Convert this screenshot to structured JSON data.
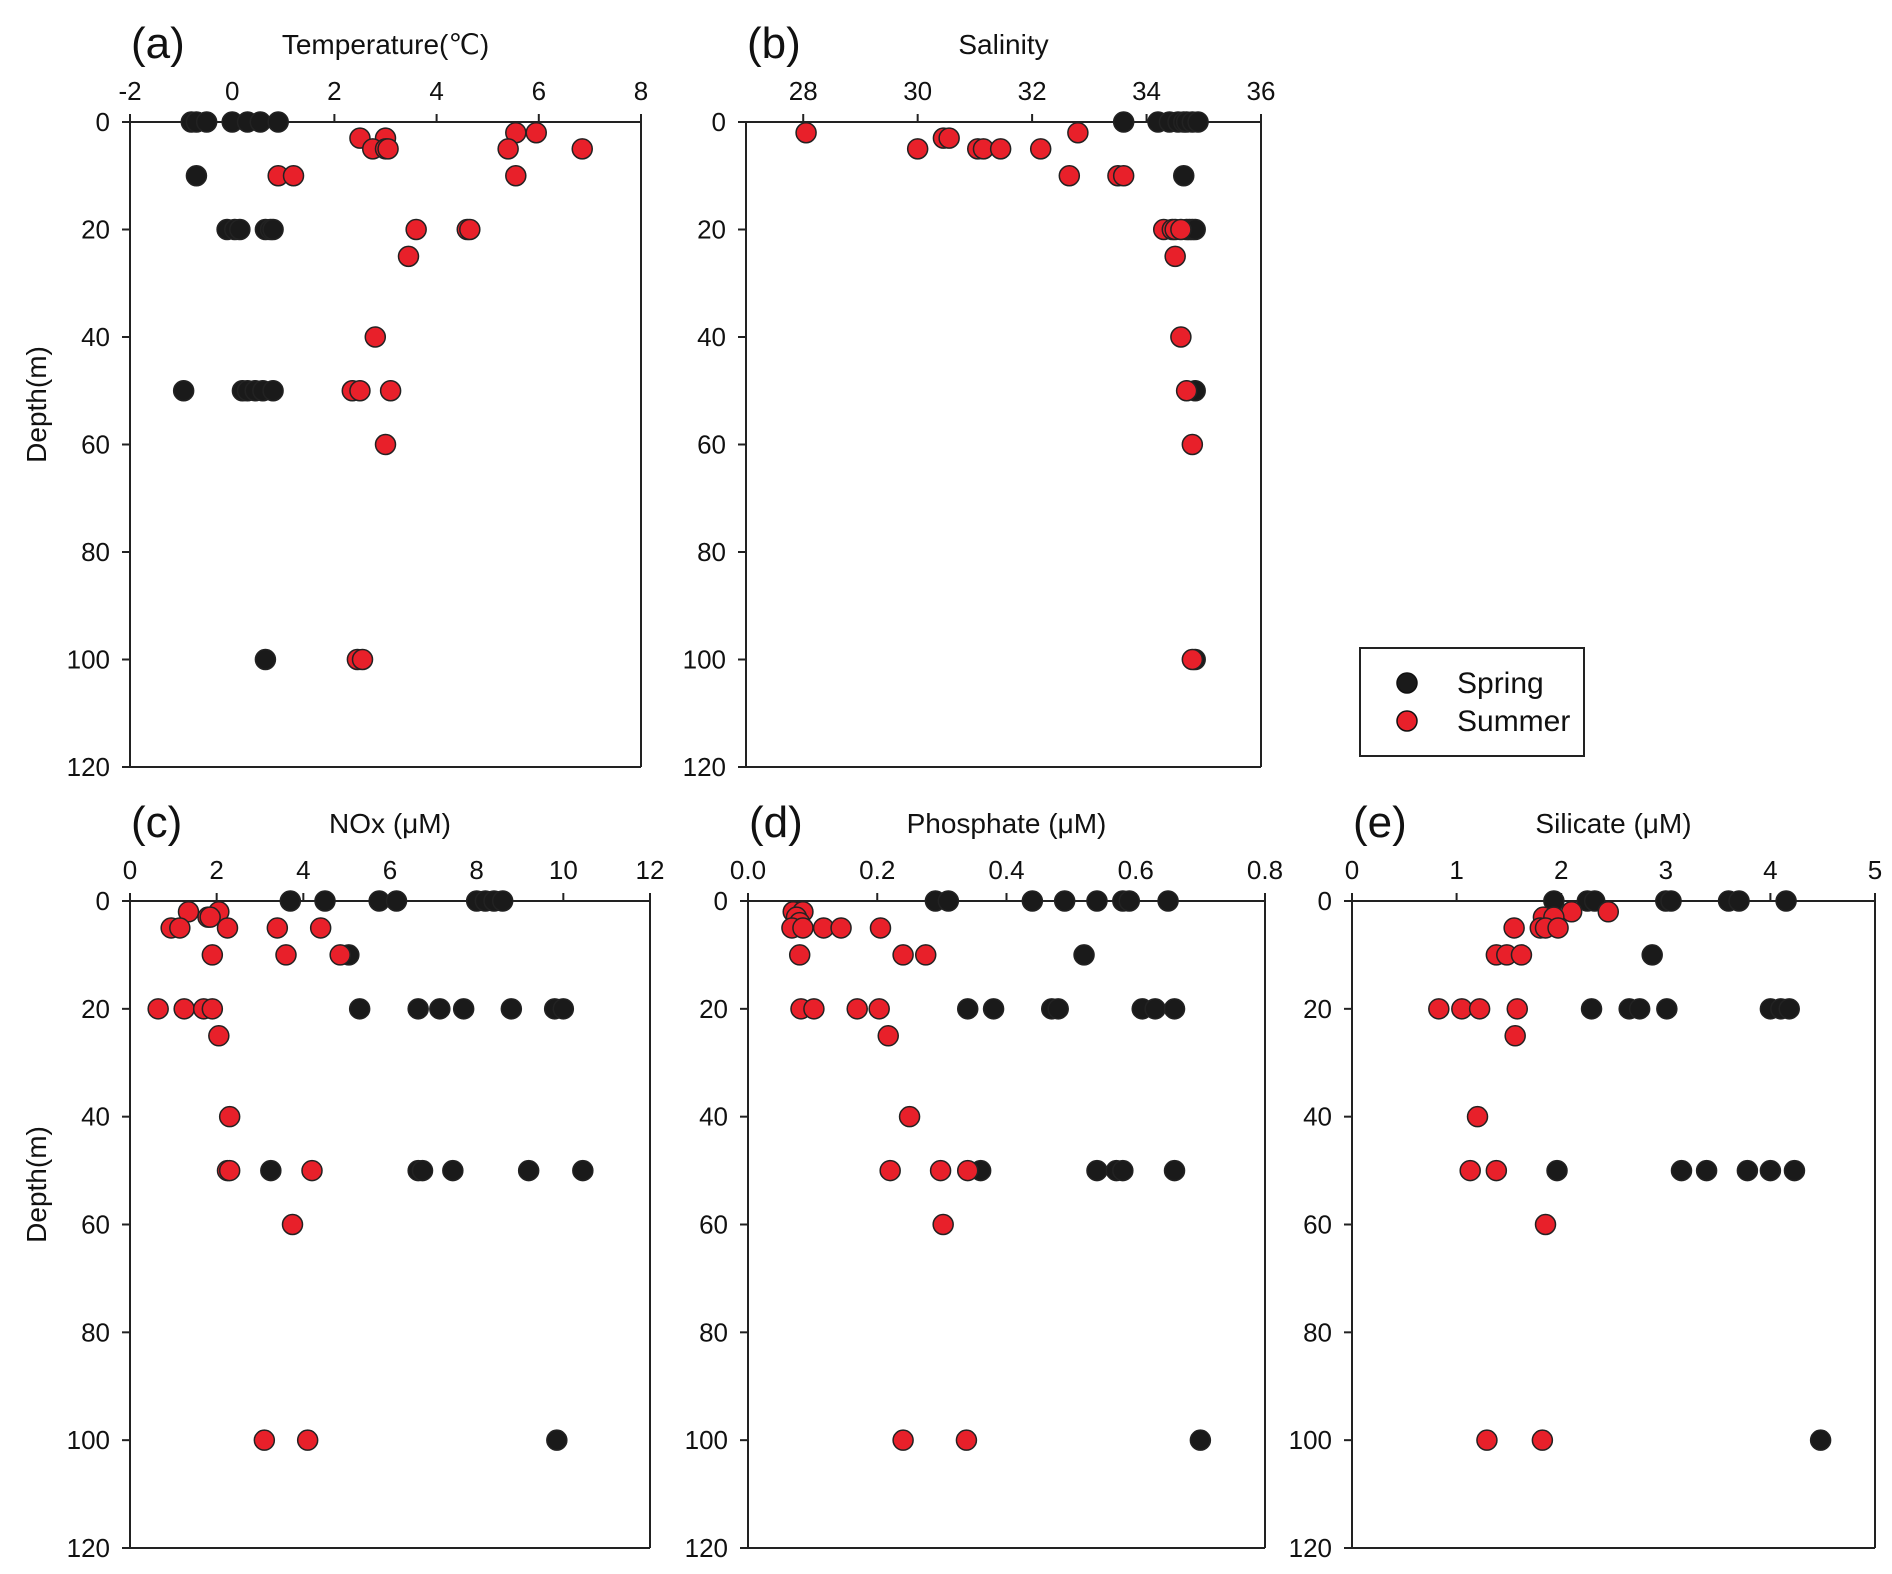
{
  "figure": {
    "legend": {
      "entries": [
        {
          "label": "Spring",
          "color": "#1a1a1a"
        },
        {
          "label": "Summer",
          "color": "#e8202a"
        }
      ]
    },
    "ylabel": "Depth(m)"
  },
  "chart_data": [
    {
      "id": "a",
      "type": "scatter",
      "panel_label": "(a)",
      "title": "Temperature(℃)",
      "xlabel": "Temperature(℃)",
      "ylabel": "Depth(m)",
      "xlim": [
        -2,
        8
      ],
      "xticks": [
        -2,
        0,
        2,
        4,
        6,
        8
      ],
      "ylim": [
        0,
        120
      ],
      "yticks": [
        0,
        20,
        40,
        60,
        80,
        100,
        120
      ],
      "y_inverted": true,
      "show_ylabel": true,
      "series": [
        {
          "name": "Spring",
          "color": "#1a1a1a",
          "points": [
            [
              -0.8,
              0
            ],
            [
              -0.7,
              0
            ],
            [
              -0.5,
              0
            ],
            [
              0.0,
              0
            ],
            [
              0.3,
              0
            ],
            [
              0.55,
              0
            ],
            [
              0.9,
              0
            ],
            [
              -0.7,
              10
            ],
            [
              -0.1,
              20
            ],
            [
              0.05,
              20
            ],
            [
              0.15,
              20
            ],
            [
              0.65,
              20
            ],
            [
              0.75,
              20
            ],
            [
              0.8,
              20
            ],
            [
              -0.95,
              50
            ],
            [
              0.2,
              50
            ],
            [
              0.3,
              50
            ],
            [
              0.45,
              50
            ],
            [
              0.6,
              50
            ],
            [
              0.8,
              50
            ],
            [
              0.65,
              100
            ]
          ]
        },
        {
          "name": "Summer",
          "color": "#e8202a",
          "points": [
            [
              5.55,
              2
            ],
            [
              5.95,
              2
            ],
            [
              2.5,
              3
            ],
            [
              3.0,
              3
            ],
            [
              2.75,
              5
            ],
            [
              3.0,
              5
            ],
            [
              3.05,
              5
            ],
            [
              5.4,
              5
            ],
            [
              6.85,
              5
            ],
            [
              0.9,
              10
            ],
            [
              1.2,
              10
            ],
            [
              5.55,
              10
            ],
            [
              3.6,
              20
            ],
            [
              4.6,
              20
            ],
            [
              4.65,
              20
            ],
            [
              3.45,
              25
            ],
            [
              2.8,
              40
            ],
            [
              2.35,
              50
            ],
            [
              2.5,
              50
            ],
            [
              3.1,
              50
            ],
            [
              3.0,
              60
            ],
            [
              2.45,
              100
            ],
            [
              2.55,
              100
            ]
          ]
        }
      ]
    },
    {
      "id": "b",
      "type": "scatter",
      "panel_label": "(b)",
      "title": "Salinity",
      "xlabel": "Salinity",
      "ylabel": "",
      "xlim": [
        27,
        36
      ],
      "xticks": [
        28,
        30,
        32,
        34,
        36
      ],
      "ylim": [
        0,
        120
      ],
      "yticks": [
        0,
        20,
        40,
        60,
        80,
        100,
        120
      ],
      "y_inverted": true,
      "show_ylabel": false,
      "series": [
        {
          "name": "Spring",
          "color": "#1a1a1a",
          "points": [
            [
              33.6,
              0
            ],
            [
              34.2,
              0
            ],
            [
              34.4,
              0
            ],
            [
              34.55,
              0
            ],
            [
              34.65,
              0
            ],
            [
              34.7,
              0
            ],
            [
              34.8,
              0
            ],
            [
              34.9,
              0
            ],
            [
              34.65,
              10
            ],
            [
              34.7,
              20
            ],
            [
              34.75,
              20
            ],
            [
              34.8,
              20
            ],
            [
              34.85,
              20
            ],
            [
              34.85,
              50
            ],
            [
              34.85,
              100
            ]
          ]
        },
        {
          "name": "Summer",
          "color": "#e8202a",
          "points": [
            [
              28.05,
              2
            ],
            [
              32.8,
              2
            ],
            [
              30.45,
              3
            ],
            [
              30.55,
              3
            ],
            [
              30.0,
              5
            ],
            [
              31.05,
              5
            ],
            [
              31.15,
              5
            ],
            [
              31.45,
              5
            ],
            [
              32.15,
              5
            ],
            [
              32.65,
              10
            ],
            [
              33.5,
              10
            ],
            [
              33.6,
              10
            ],
            [
              34.3,
              20
            ],
            [
              34.45,
              20
            ],
            [
              34.5,
              20
            ],
            [
              34.6,
              20
            ],
            [
              34.5,
              25
            ],
            [
              34.6,
              40
            ],
            [
              34.7,
              50
            ],
            [
              34.8,
              60
            ],
            [
              34.8,
              100
            ]
          ]
        }
      ]
    },
    {
      "id": "c",
      "type": "scatter",
      "panel_label": "(c)",
      "title": "NOx (μM)",
      "xlabel": "NOx (μM)",
      "ylabel": "Depth(m)",
      "xlim": [
        0,
        12
      ],
      "xticks": [
        0,
        2,
        4,
        6,
        8,
        10,
        12
      ],
      "ylim": [
        0,
        120
      ],
      "yticks": [
        0,
        20,
        40,
        60,
        80,
        100,
        120
      ],
      "y_inverted": true,
      "show_ylabel": true,
      "series": [
        {
          "name": "Spring",
          "color": "#1a1a1a",
          "points": [
            [
              3.7,
              0
            ],
            [
              4.5,
              0
            ],
            [
              5.75,
              0
            ],
            [
              6.15,
              0
            ],
            [
              8.0,
              0
            ],
            [
              8.2,
              0
            ],
            [
              8.4,
              0
            ],
            [
              8.6,
              0
            ],
            [
              5.05,
              10
            ],
            [
              5.3,
              20
            ],
            [
              6.65,
              20
            ],
            [
              7.15,
              20
            ],
            [
              7.7,
              20
            ],
            [
              8.8,
              20
            ],
            [
              9.8,
              20
            ],
            [
              10.0,
              20
            ],
            [
              3.25,
              50
            ],
            [
              6.65,
              50
            ],
            [
              6.75,
              50
            ],
            [
              7.45,
              50
            ],
            [
              9.2,
              50
            ],
            [
              10.45,
              50
            ],
            [
              9.85,
              100
            ]
          ]
        },
        {
          "name": "Summer",
          "color": "#e8202a",
          "points": [
            [
              1.35,
              2
            ],
            [
              2.05,
              2
            ],
            [
              1.8,
              3
            ],
            [
              1.85,
              3
            ],
            [
              0.95,
              5
            ],
            [
              1.15,
              5
            ],
            [
              2.25,
              5
            ],
            [
              3.4,
              5
            ],
            [
              4.4,
              5
            ],
            [
              1.9,
              10
            ],
            [
              3.6,
              10
            ],
            [
              4.85,
              10
            ],
            [
              0.65,
              20
            ],
            [
              1.25,
              20
            ],
            [
              1.7,
              20
            ],
            [
              1.9,
              20
            ],
            [
              2.05,
              25
            ],
            [
              2.3,
              40
            ],
            [
              2.25,
              50
            ],
            [
              2.3,
              50
            ],
            [
              4.2,
              50
            ],
            [
              3.75,
              60
            ],
            [
              3.1,
              100
            ],
            [
              4.1,
              100
            ]
          ]
        }
      ]
    },
    {
      "id": "d",
      "type": "scatter",
      "panel_label": "(d)",
      "title": "Phosphate (μM)",
      "xlabel": "Phosphate (μM)",
      "ylabel": "",
      "xlim": [
        0,
        0.8
      ],
      "xticks": [
        0.0,
        0.2,
        0.4,
        0.6,
        0.8
      ],
      "xtick_labels": [
        "0.0",
        "0.2",
        "0.4",
        "0.6",
        "0.8"
      ],
      "ylim": [
        0,
        120
      ],
      "yticks": [
        0,
        20,
        40,
        60,
        80,
        100,
        120
      ],
      "y_inverted": true,
      "show_ylabel": false,
      "series": [
        {
          "name": "Spring",
          "color": "#1a1a1a",
          "points": [
            [
              0.29,
              0
            ],
            [
              0.31,
              0
            ],
            [
              0.44,
              0
            ],
            [
              0.49,
              0
            ],
            [
              0.54,
              0
            ],
            [
              0.58,
              0
            ],
            [
              0.59,
              0
            ],
            [
              0.65,
              0
            ],
            [
              0.52,
              10
            ],
            [
              0.34,
              20
            ],
            [
              0.38,
              20
            ],
            [
              0.47,
              20
            ],
            [
              0.48,
              20
            ],
            [
              0.61,
              20
            ],
            [
              0.63,
              20
            ],
            [
              0.66,
              20
            ],
            [
              0.36,
              50
            ],
            [
              0.54,
              50
            ],
            [
              0.57,
              50
            ],
            [
              0.58,
              50
            ],
            [
              0.66,
              50
            ],
            [
              0.7,
              100
            ]
          ]
        },
        {
          "name": "Summer",
          "color": "#e8202a",
          "points": [
            [
              0.07,
              2
            ],
            [
              0.085,
              2
            ],
            [
              0.075,
              3
            ],
            [
              0.08,
              4
            ],
            [
              0.068,
              5
            ],
            [
              0.085,
              5
            ],
            [
              0.117,
              5
            ],
            [
              0.144,
              5
            ],
            [
              0.205,
              5
            ],
            [
              0.08,
              10
            ],
            [
              0.24,
              10
            ],
            [
              0.275,
              10
            ],
            [
              0.082,
              20
            ],
            [
              0.102,
              20
            ],
            [
              0.169,
              20
            ],
            [
              0.203,
              20
            ],
            [
              0.217,
              25
            ],
            [
              0.25,
              40
            ],
            [
              0.22,
              50
            ],
            [
              0.298,
              50
            ],
            [
              0.34,
              50
            ],
            [
              0.302,
              60
            ],
            [
              0.24,
              100
            ],
            [
              0.338,
              100
            ]
          ]
        }
      ]
    },
    {
      "id": "e",
      "type": "scatter",
      "panel_label": "(e)",
      "title": "Silicate (μM)",
      "xlabel": "Silicate (μM)",
      "ylabel": "",
      "xlim": [
        0,
        5
      ],
      "xticks": [
        0,
        1,
        2,
        3,
        4,
        5
      ],
      "ylim": [
        0,
        120
      ],
      "yticks": [
        0,
        20,
        40,
        60,
        80,
        100,
        120
      ],
      "y_inverted": true,
      "show_ylabel": false,
      "series": [
        {
          "name": "Spring",
          "color": "#1a1a1a",
          "points": [
            [
              1.93,
              0
            ],
            [
              2.25,
              0
            ],
            [
              2.32,
              0
            ],
            [
              3.0,
              0
            ],
            [
              3.05,
              0
            ],
            [
              3.6,
              0
            ],
            [
              3.7,
              0
            ],
            [
              4.15,
              0
            ],
            [
              2.87,
              10
            ],
            [
              2.29,
              20
            ],
            [
              2.65,
              20
            ],
            [
              2.75,
              20
            ],
            [
              3.01,
              20
            ],
            [
              4.0,
              20
            ],
            [
              4.1,
              20
            ],
            [
              4.18,
              20
            ],
            [
              1.96,
              50
            ],
            [
              3.15,
              50
            ],
            [
              3.39,
              50
            ],
            [
              3.78,
              50
            ],
            [
              4.0,
              50
            ],
            [
              4.23,
              50
            ],
            [
              4.48,
              100
            ]
          ]
        },
        {
          "name": "Summer",
          "color": "#e8202a",
          "points": [
            [
              2.1,
              2
            ],
            [
              2.45,
              2
            ],
            [
              1.83,
              3
            ],
            [
              1.93,
              3
            ],
            [
              1.55,
              5
            ],
            [
              1.8,
              5
            ],
            [
              1.85,
              5
            ],
            [
              1.97,
              5
            ],
            [
              1.38,
              10
            ],
            [
              1.48,
              10
            ],
            [
              1.62,
              10
            ],
            [
              0.83,
              20
            ],
            [
              1.05,
              20
            ],
            [
              1.22,
              20
            ],
            [
              1.58,
              20
            ],
            [
              1.56,
              25
            ],
            [
              1.2,
              40
            ],
            [
              1.13,
              50
            ],
            [
              1.38,
              50
            ],
            [
              1.85,
              60
            ],
            [
              1.29,
              100
            ],
            [
              1.82,
              100
            ]
          ]
        }
      ]
    }
  ]
}
